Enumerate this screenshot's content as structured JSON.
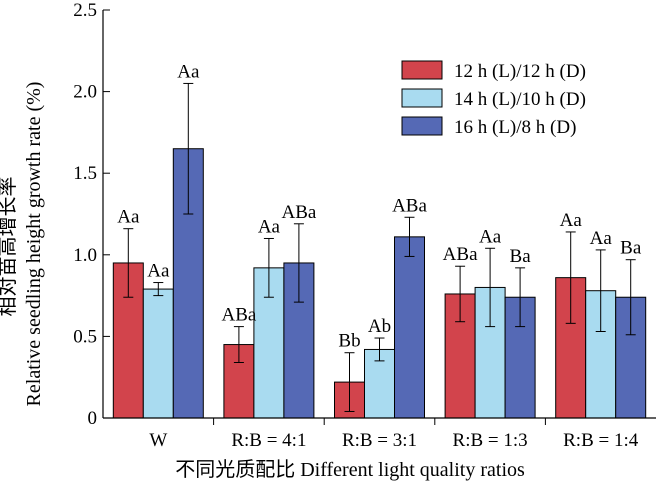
{
  "chart_data": {
    "type": "bar",
    "title": "",
    "xlabel": "不同光质配比 Different light quality ratios",
    "ylabel_cn": "相对苗高增长率",
    "ylabel_en": "Relative seedling height growth rate (%)",
    "ylim": [
      0,
      2.5
    ],
    "yticks": [
      0,
      0.5,
      1.0,
      1.5,
      2.0,
      2.5
    ],
    "ytick_labels": [
      "0",
      "0.5",
      "1.0",
      "1.5",
      "2.0",
      "2.5"
    ],
    "categories": [
      "W",
      "R:B = 4:1",
      "R:B = 3:1",
      "R:B = 1:3",
      "R:B = 1:4"
    ],
    "legend_position": "top-right",
    "grid": false,
    "series": [
      {
        "name": "12 h (L)/12 h (D)",
        "color": "#d2444c",
        "values": [
          0.95,
          0.45,
          0.22,
          0.76,
          0.86
        ],
        "errors": [
          0.21,
          0.11,
          0.18,
          0.17,
          0.28
        ],
        "labels": [
          "Aa",
          "ABa",
          "Bb",
          "ABa",
          "Aa"
        ]
      },
      {
        "name": "14 h (L)/10 h (D)",
        "color": "#a9dbf0",
        "values": [
          0.79,
          0.92,
          0.42,
          0.8,
          0.78
        ],
        "errors": [
          0.04,
          0.18,
          0.07,
          0.24,
          0.25
        ],
        "labels": [
          "Aa",
          "Aa",
          "Ab",
          "Aa",
          "Aa"
        ]
      },
      {
        "name": "16 h (L)/8 h (D)",
        "color": "#5569b5",
        "values": [
          1.65,
          0.95,
          1.11,
          0.74,
          0.74
        ],
        "errors": [
          0.4,
          0.24,
          0.12,
          0.18,
          0.23
        ],
        "labels": [
          "Aa",
          "ABa",
          "ABa",
          "Ba",
          "Ba"
        ]
      }
    ]
  }
}
